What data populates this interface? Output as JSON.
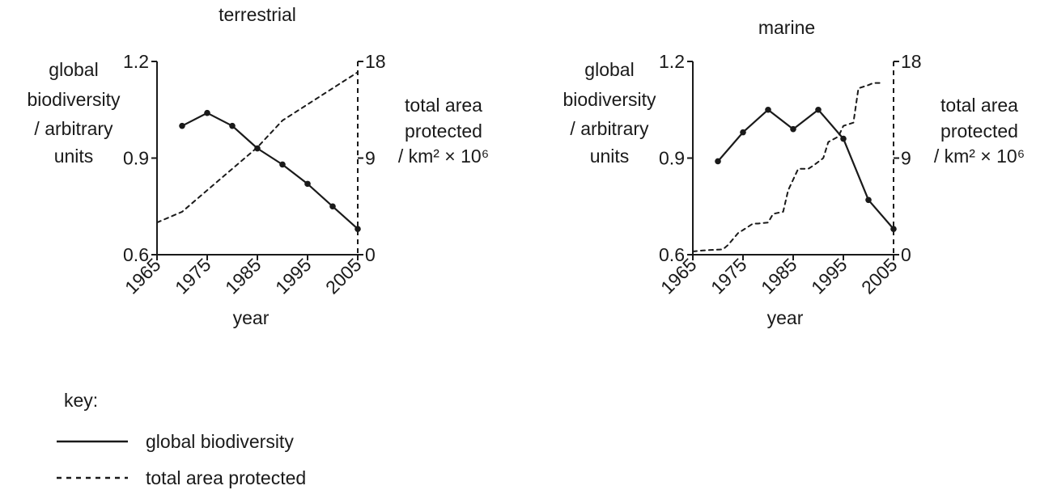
{
  "chart_data": [
    {
      "type": "line",
      "title": "terrestrial",
      "xlabel": "year",
      "ylabel_left": [
        "global",
        "biodiversity",
        "/ arbitrary",
        "units"
      ],
      "ylabel_right": [
        "total area",
        "protected",
        "/ km² × 10⁶"
      ],
      "xlim": [
        1965,
        2005
      ],
      "x_ticks": [
        "1965",
        "1975",
        "1985",
        "1995",
        "2005"
      ],
      "y_left": {
        "lim": [
          0.6,
          1.2
        ],
        "ticks": [
          "0.6",
          "0.9",
          "1.2"
        ]
      },
      "y_right": {
        "lim": [
          0,
          18
        ],
        "ticks": [
          "0",
          "9",
          "18"
        ]
      },
      "series": [
        {
          "key": "biodiversity",
          "axis": "left",
          "style": "solid",
          "markers": true,
          "x": [
            1970,
            1975,
            1980,
            1985,
            1990,
            1995,
            2000,
            2005
          ],
          "y": [
            1.0,
            1.04,
            1.0,
            0.93,
            0.88,
            0.82,
            0.75,
            0.68
          ]
        },
        {
          "key": "area",
          "axis": "right",
          "style": "dashed",
          "markers": false,
          "x": [
            1965,
            1970,
            1975,
            1980,
            1985,
            1990,
            1995,
            2000,
            2005
          ],
          "y": [
            3.0,
            4.0,
            6.0,
            8.0,
            10.0,
            12.5,
            14.0,
            15.5,
            17.0
          ]
        }
      ]
    },
    {
      "type": "line",
      "title": "marine",
      "xlabel": "year",
      "ylabel_left": [
        "global",
        "biodiversity",
        "/ arbitrary",
        "units"
      ],
      "ylabel_right": [
        "total area",
        "protected",
        "/ km² × 10⁶"
      ],
      "xlim": [
        1965,
        2005
      ],
      "x_ticks": [
        "1965",
        "1975",
        "1985",
        "1995",
        "2005"
      ],
      "y_left": {
        "lim": [
          0.6,
          1.2
        ],
        "ticks": [
          "0.6",
          "0.9",
          "1.2"
        ]
      },
      "y_right": {
        "lim": [
          0,
          18
        ],
        "ticks": [
          "0",
          "9",
          "18"
        ]
      },
      "series": [
        {
          "key": "biodiversity",
          "axis": "left",
          "style": "solid",
          "markers": true,
          "x": [
            1970,
            1975,
            1980,
            1985,
            1990,
            1995,
            2000,
            2005
          ],
          "y": [
            0.89,
            0.98,
            1.05,
            0.99,
            1.05,
            0.96,
            0.77,
            0.68
          ]
        },
        {
          "key": "area",
          "axis": "right",
          "style": "dashed",
          "markers": false,
          "x": [
            1965,
            1967,
            1971,
            1972,
            1974,
            1975,
            1977,
            1978,
            1980,
            1981,
            1983,
            1984,
            1985,
            1986,
            1988,
            1989,
            1991,
            1992,
            1994,
            1995,
            1997,
            1998,
            2000,
            2001,
            2003
          ],
          "y": [
            0.3,
            0.4,
            0.5,
            0.9,
            2.0,
            2.3,
            2.9,
            2.9,
            3.0,
            3.8,
            4.0,
            6.0,
            7.0,
            8.0,
            8.0,
            8.3,
            9.0,
            10.5,
            11.0,
            12.0,
            12.3,
            15.5,
            15.8,
            16.0,
            16.0
          ]
        }
      ]
    }
  ],
  "key": {
    "title": "key:",
    "items": [
      {
        "label": "global biodiversity",
        "style": "solid"
      },
      {
        "label": "total area protected",
        "style": "dashed"
      }
    ]
  }
}
